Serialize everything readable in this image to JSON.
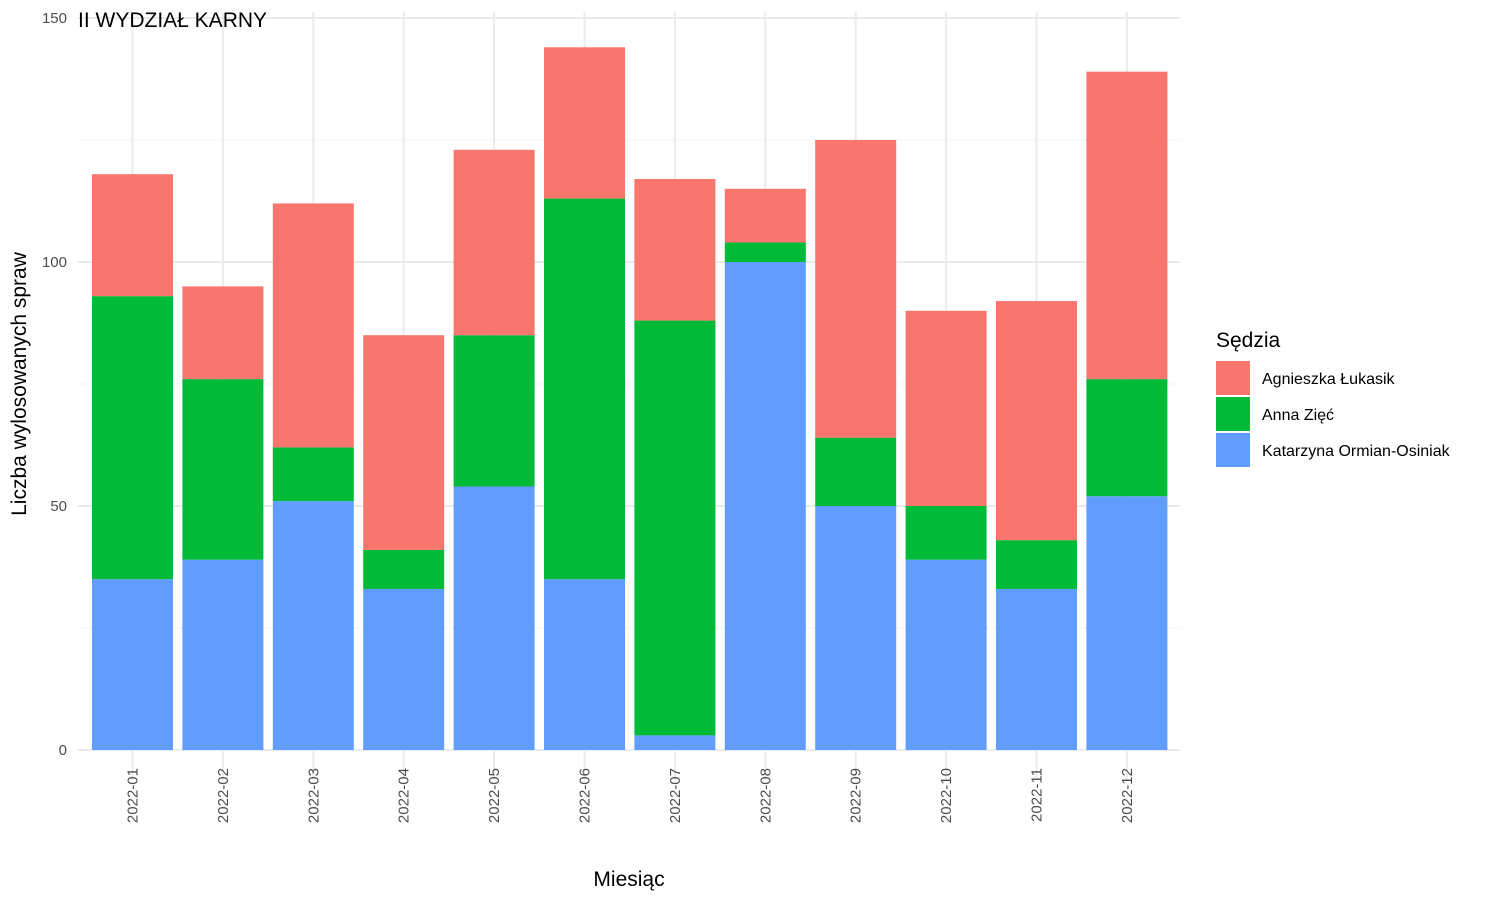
{
  "chart_data": {
    "type": "bar",
    "stacked": true,
    "title": "II WYDZIAŁ KARNY",
    "xlabel": "Miesiąc",
    "ylabel": "Liczba wylosowanych spraw",
    "ylim": [
      0,
      150
    ],
    "yticks": [
      0,
      50,
      100,
      150
    ],
    "grid": true,
    "legend": {
      "title": "Sędzia",
      "position": "right"
    },
    "categories": [
      "2022-01",
      "2022-02",
      "2022-03",
      "2022-04",
      "2022-05",
      "2022-06",
      "2022-07",
      "2022-08",
      "2022-09",
      "2022-10",
      "2022-11",
      "2022-12"
    ],
    "series": [
      {
        "name": "Katarzyna Ormian-Osiniak",
        "color": "#619CFF",
        "values": [
          35,
          39,
          51,
          33,
          54,
          35,
          3,
          100,
          50,
          39,
          33,
          52
        ]
      },
      {
        "name": "Anna Zięć",
        "color": "#00BA38",
        "values": [
          58,
          37,
          11,
          8,
          31,
          78,
          85,
          4,
          14,
          11,
          10,
          24
        ]
      },
      {
        "name": "Agnieszka Łukasik",
        "color": "#F8766D",
        "values": [
          25,
          19,
          50,
          44,
          38,
          31,
          29,
          11,
          61,
          40,
          49,
          63
        ]
      }
    ],
    "legend_order": [
      "Agnieszka Łukasik",
      "Anna Zięć",
      "Katarzyna Ormian-Osiniak"
    ]
  }
}
